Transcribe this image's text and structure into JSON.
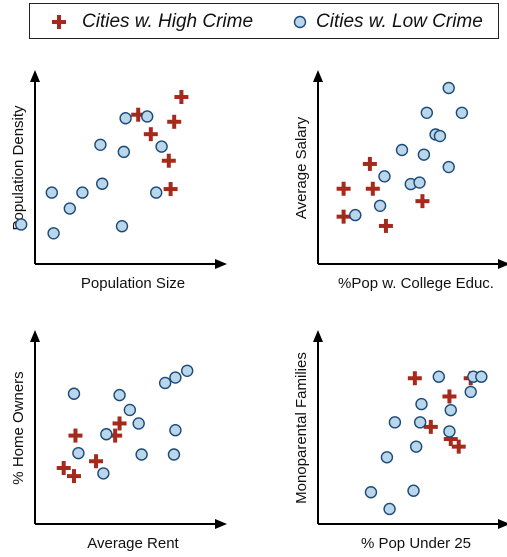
{
  "legend": {
    "high_label": "Cities w. High Crime",
    "low_label": "Cities w. Low Crime"
  },
  "colors": {
    "high": "#a52a1c",
    "low_fill": "#b9d6ea",
    "low_stroke": "#1c4a78",
    "axis": "#000000"
  },
  "chart_data": [
    {
      "type": "scatter",
      "title": "",
      "xlabel": "Population Size",
      "ylabel": "Population Density",
      "xlim": [
        0,
        100
      ],
      "ylim": [
        0,
        100
      ],
      "series": [
        {
          "name": "Cities w. High Crime",
          "marker": "plus",
          "x": [
            69,
            76,
            89,
            93,
            86,
            87
          ],
          "y": [
            77,
            66,
            73,
            87,
            51,
            35
          ]
        },
        {
          "name": "Cities w. Low Crime",
          "marker": "circle",
          "x": [
            4,
            22,
            31,
            21,
            38,
            49,
            48,
            62,
            61,
            74,
            82,
            79,
            60
          ],
          "y": [
            15,
            10,
            24,
            33,
            33,
            38,
            60,
            75,
            56,
            76,
            59,
            33,
            14
          ]
        }
      ]
    },
    {
      "type": "scatter",
      "title": "",
      "xlabel": "%Pop w. College Educ.",
      "ylabel": "Average Salary",
      "xlim": [
        0,
        100
      ],
      "ylim": [
        0,
        100
      ],
      "series": [
        {
          "name": "Cities w. High Crime",
          "marker": "plus",
          "x": [
            10,
            10,
            28,
            30,
            39,
            64
          ],
          "y": [
            35,
            17,
            51,
            35,
            11,
            27
          ]
        },
        {
          "name": "Cities w. Low Crime",
          "marker": "circle",
          "x": [
            18,
            35,
            38,
            50,
            56,
            65,
            67,
            73,
            76,
            82,
            91,
            82,
            62
          ],
          "y": [
            18,
            24,
            43,
            60,
            38,
            57,
            84,
            70,
            69,
            100,
            84,
            49,
            39
          ]
        }
      ]
    },
    {
      "type": "scatter",
      "title": "",
      "xlabel": "Average Rent",
      "ylabel": "% Home Owners",
      "xlim": [
        0,
        100
      ],
      "ylim": [
        0,
        100
      ],
      "series": [
        {
          "name": "Cities w. High Crime",
          "marker": "plus",
          "x": [
            18,
            10,
            17,
            32,
            45,
            48
          ],
          "y": [
            44,
            20,
            14,
            25,
            44,
            53
          ]
        },
        {
          "name": "Cities w. Low Crime",
          "marker": "circle",
          "x": [
            17,
            20,
            39,
            37,
            48,
            55,
            61,
            63,
            79,
            86,
            86,
            85,
            94
          ],
          "y": [
            75,
            31,
            45,
            16,
            74,
            63,
            53,
            30,
            83,
            87,
            48,
            30,
            92
          ]
        }
      ]
    },
    {
      "type": "scatter",
      "title": "",
      "xlabel": "% Pop Under 25",
      "ylabel": "Monoparental Families",
      "xlim": [
        0,
        100
      ],
      "ylim": [
        0,
        100
      ],
      "series": [
        {
          "name": "Cities w. High Crime",
          "marker": "plus",
          "x": [
            45,
            57,
            78,
            87,
            71,
            72
          ],
          "y": [
            88,
            56,
            43,
            88,
            76,
            48
          ]
        },
        {
          "name": "Cities w. Low Crime",
          "marker": "circle",
          "x": [
            12,
            26,
            24,
            30,
            44,
            46,
            49,
            50,
            63,
            71,
            72,
            87,
            89,
            95
          ],
          "y": [
            13,
            2,
            36,
            59,
            14,
            43,
            59,
            71,
            89,
            53,
            67,
            79,
            89,
            89
          ]
        }
      ]
    }
  ]
}
